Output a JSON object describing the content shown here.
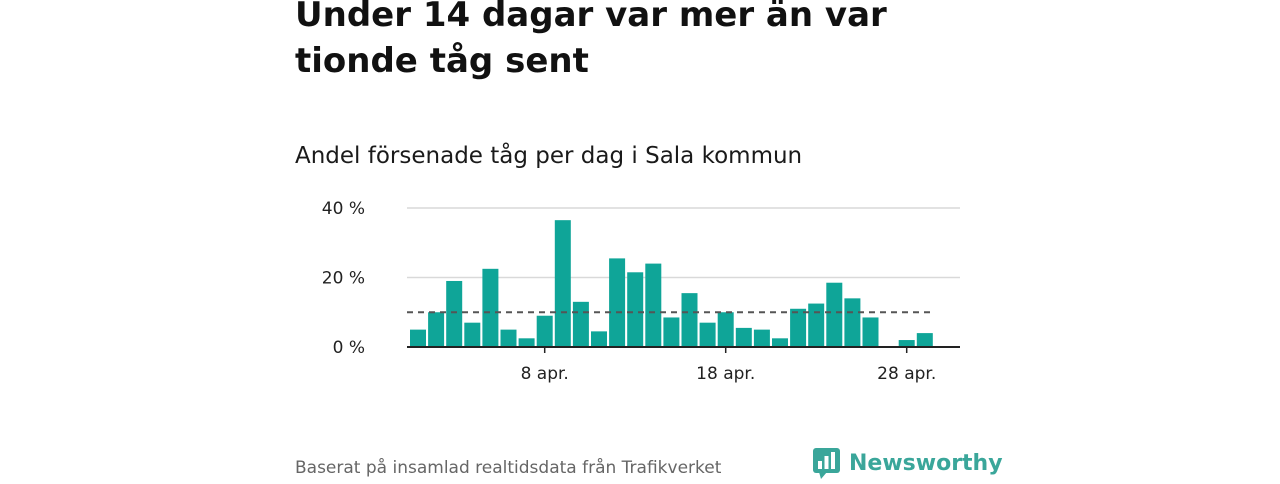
{
  "header": {
    "title": "Under 14 dagar var mer än var tionde tåg sent",
    "subtitle": "Andel försenade tåg per dag i Sala kommun"
  },
  "footer": {
    "source": "Baserat på insamlad realtidsdata från Trafikverket",
    "brand": "Newsworthy",
    "brand_icon": "bar-chart-speech-bubble-icon"
  },
  "colors": {
    "bar": "#0fa598",
    "reference_line": "#555555",
    "gridline": "#d9d9d9",
    "axis": "#222222",
    "brand": "#3aa69a"
  },
  "chart_data": {
    "type": "bar",
    "x": [
      "2024-04-01",
      "2024-04-02",
      "2024-04-03",
      "2024-04-04",
      "2024-04-05",
      "2024-04-06",
      "2024-04-07",
      "2024-04-08",
      "2024-04-09",
      "2024-04-10",
      "2024-04-11",
      "2024-04-12",
      "2024-04-13",
      "2024-04-14",
      "2024-04-15",
      "2024-04-16",
      "2024-04-17",
      "2024-04-18",
      "2024-04-19",
      "2024-04-20",
      "2024-04-21",
      "2024-04-22",
      "2024-04-23",
      "2024-04-24",
      "2024-04-25",
      "2024-04-26",
      "2024-04-27",
      "2024-04-28",
      "2024-04-29"
    ],
    "values": [
      5,
      10,
      19,
      7,
      22.5,
      5,
      2.5,
      9,
      36.5,
      13,
      4.5,
      25.5,
      21.5,
      24,
      8.5,
      15.5,
      7,
      10,
      5.5,
      5,
      2.5,
      11,
      12.5,
      18.5,
      14,
      8.5,
      0,
      2,
      4
    ],
    "reference_line": 10,
    "ylim": [
      0,
      40
    ],
    "y_ticks": [
      0,
      20,
      40
    ],
    "y_tick_labels": [
      "0 %",
      "20 %",
      "40 %"
    ],
    "x_ticks": [
      "2024-04-08",
      "2024-04-18",
      "2024-04-28"
    ],
    "x_tick_labels": [
      "8 apr.",
      "18 apr.",
      "28 apr."
    ],
    "grid": true,
    "legend": "none"
  }
}
